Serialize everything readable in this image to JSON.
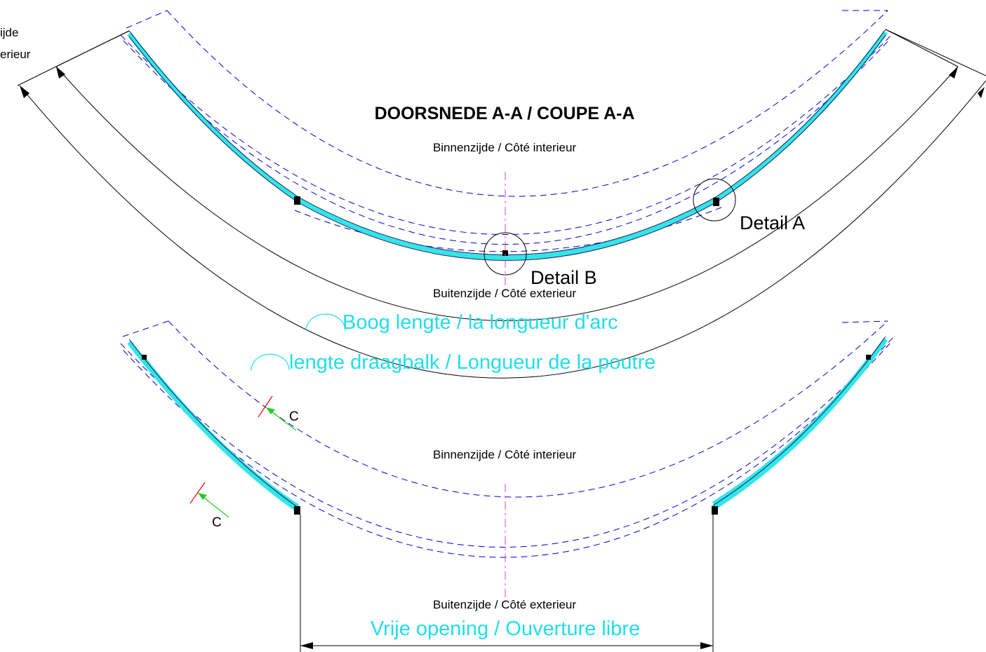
{
  "section": {
    "title": "DOORSNEDE A-A / COUPE A-A",
    "upper_inside": "Binnenzijde / Côté interieur",
    "upper_outside": "Buitenzijde / Côté exterieur",
    "lower_inside": "Binnenzijde / Côté interieur",
    "lower_outside": "Buitenzijde / Côté exterieur",
    "left_edge_line1": "ijde",
    "left_edge_line2": "erieur"
  },
  "details": {
    "detail_a": "Detail A",
    "detail_b": "Detail B"
  },
  "dimensions": {
    "arc_length": "Boog lengte / la longueur d'arc",
    "beam_length": "lengte draagbalk / Longueur de la poutre",
    "free_opening": "Vrije opening / Ouverture libre"
  },
  "cuts": {
    "upper_cut": "C",
    "lower_cut": "C"
  },
  "colors": {
    "glass": "#33e6e6",
    "annotation": "#22dde8",
    "dashed": "#0000cc",
    "axis": "#e040e0",
    "cut_line": "#ff0000",
    "cut_arrow": "#22cc22",
    "line": "#000000"
  }
}
